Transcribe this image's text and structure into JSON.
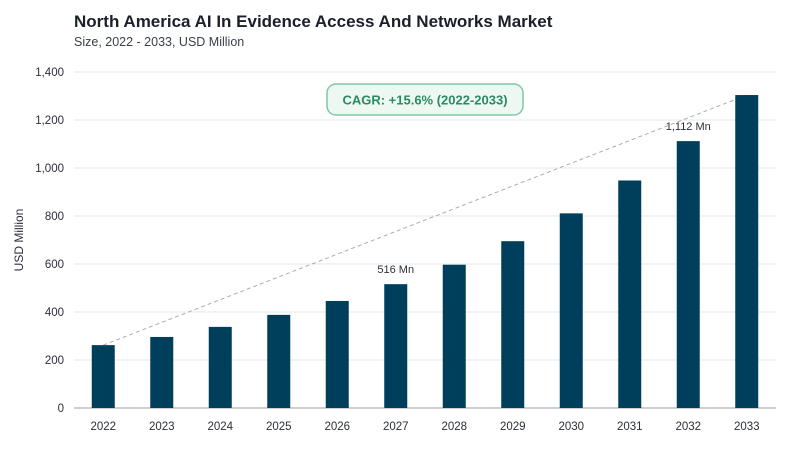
{
  "header": {
    "title": "North America AI In Evidence Access And Networks Market",
    "subtitle": "Size, 2022 - 2033, USD Million"
  },
  "chart_data": {
    "type": "bar",
    "categories": [
      "2022",
      "2023",
      "2024",
      "2025",
      "2026",
      "2027",
      "2028",
      "2029",
      "2030",
      "2031",
      "2032",
      "2033"
    ],
    "values": [
      262,
      296,
      338,
      388,
      446,
      516,
      597,
      695,
      811,
      948,
      1112,
      1304
    ],
    "ylabel": "USD Million",
    "ylim": [
      0,
      1400
    ],
    "yticks": [
      0,
      200,
      400,
      600,
      800,
      1000,
      1200,
      1400
    ],
    "ytick_labels": [
      "0",
      "200",
      "400",
      "600",
      "800",
      "1,000",
      "1,200",
      "1,400"
    ],
    "bar_color": "#003f5c",
    "grid": true,
    "data_labels": [
      {
        "category": "2027",
        "text": "516 Mn"
      },
      {
        "category": "2032",
        "text": "1,112 Mn"
      }
    ],
    "trend_line": {
      "from": "2022",
      "to": "2033",
      "style": "dashed",
      "color": "#a9adb3"
    },
    "annotation": {
      "text": "CAGR: +15.6% (2022-2033)",
      "color": "#2a8a64",
      "background": "#eef8f3",
      "border": "#7dc9a5"
    }
  }
}
